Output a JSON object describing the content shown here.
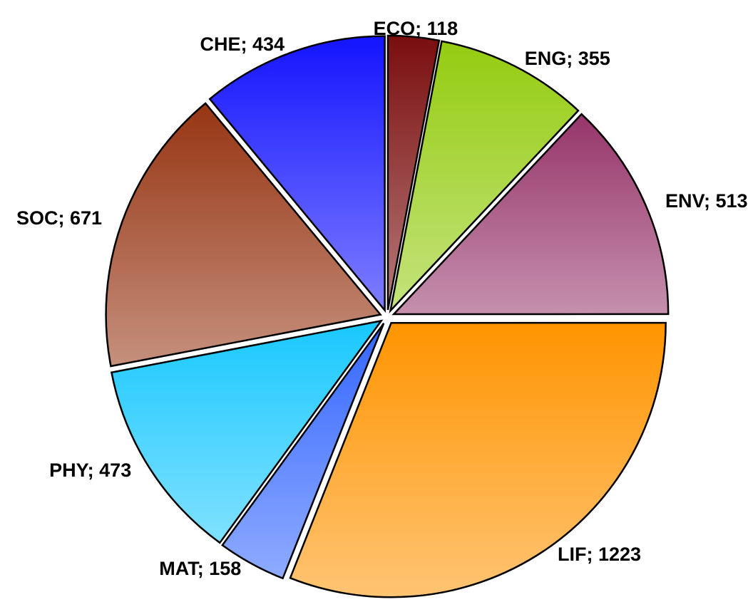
{
  "chart_data": {
    "type": "pie",
    "categories": [
      "ECO",
      "ENG",
      "ENV",
      "LIF",
      "MAT",
      "PHY",
      "SOC",
      "CHE"
    ],
    "values": [
      118,
      355,
      513,
      1223,
      158,
      473,
      671,
      434
    ],
    "value_labels": [
      "ECO; 118",
      "ENG; 355",
      "ENV; 513",
      "LIF; 1223",
      "MAT; 158",
      "PHY; 473",
      "SOC; 671",
      "CHE; 434"
    ],
    "colors": [
      "#7a0e0e",
      "#94cc10",
      "#96356a",
      "#ff9400",
      "#3366ff",
      "#18c8ff",
      "#963512",
      "#1414ff"
    ]
  }
}
